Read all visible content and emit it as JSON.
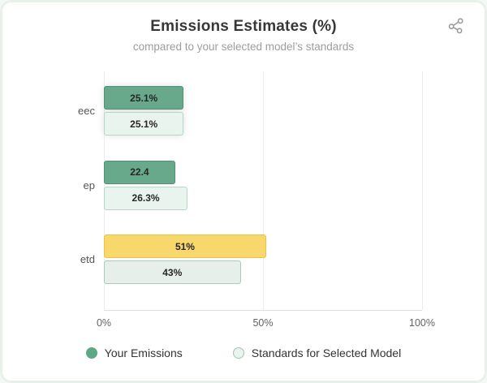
{
  "header": {
    "title": "Emissions Estimates (%)",
    "subtitle": "compared to your selected model’s standards",
    "share_icon": "share-alt"
  },
  "chart_data": {
    "type": "bar",
    "orientation": "horizontal",
    "title": "Emissions Estimates (%)",
    "subtitle": "compared to your selected model’s standards",
    "categories": [
      "eec",
      "ep",
      "etd"
    ],
    "series": [
      {
        "name": "Your Emissions",
        "values": [
          25.1,
          22.4,
          51
        ],
        "labels": [
          "25.1%",
          "22.4",
          "51%"
        ],
        "fill_colors": [
          "#68a98b",
          "#68a98b",
          "#f8d76d"
        ],
        "border_colors": [
          "#4f9170",
          "#4f9170",
          "#edc23f"
        ]
      },
      {
        "name": "Standards for Selected Model",
        "values": [
          25.1,
          26.3,
          43
        ],
        "labels": [
          "25.1%",
          "26.3%",
          "43%"
        ],
        "fill_colors": [
          "#eaf4ee",
          "#eaf4ee",
          "#e6efe9"
        ],
        "border_colors": [
          "#b7d7c6",
          "#b7d7c6",
          "#aacbbb"
        ]
      }
    ],
    "xlim": [
      0,
      100
    ],
    "xtick_values": [
      0,
      50,
      100
    ],
    "xtick_labels": [
      "0%",
      "50%",
      "100%"
    ],
    "grid": "vertical-gridlines-on",
    "legend_position": "bottom",
    "legend": [
      {
        "label": "Your Emissions",
        "swatch_fill": "#5fa886",
        "swatch_border": "#5fa886"
      },
      {
        "label": "Standards for Selected Model",
        "swatch_fill": "#e9f4ee",
        "swatch_border": "#9fc7b2"
      }
    ]
  },
  "colors": {
    "card_border": "#e7f1ea",
    "your_emissions_green": "#68a98b",
    "warning_yellow": "#f8d76d",
    "standard_pale_green": "#eaf4ee",
    "title_text": "#373737",
    "subtitle_text": "#9c9c9c"
  }
}
